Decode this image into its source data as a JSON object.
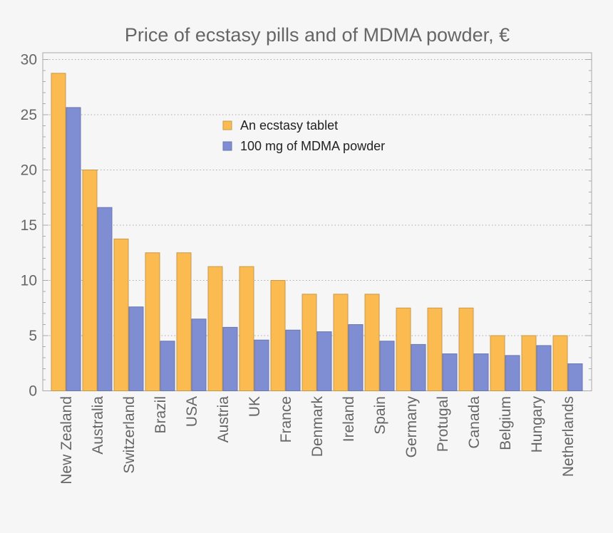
{
  "chart_data": {
    "type": "bar",
    "title": "Price of ecstasy pills and of MDMA powder, €",
    "xlabel": "",
    "ylabel": "",
    "ylim": [
      0,
      30.5
    ],
    "yticks": [
      0,
      5,
      10,
      15,
      20,
      25,
      30
    ],
    "grid": "horizontal dotted",
    "legend_position": "top-center",
    "categories": [
      "New Zealand",
      "Australia",
      "Switzerland",
      "Brazil",
      "USA",
      "Austria",
      "UK",
      "France",
      "Denmark",
      "Ireland",
      "Spain",
      "Germany",
      "Protugal",
      "Canada",
      "Belgium",
      "Hungary",
      "Netherlands"
    ],
    "series": [
      {
        "name": "An ecstasy tablet",
        "color": "#fbbb51",
        "values": [
          28.75,
          20,
          13.75,
          12.5,
          12.5,
          11.25,
          11.25,
          10,
          8.75,
          8.75,
          8.75,
          7.5,
          7.5,
          7.5,
          5,
          5,
          5
        ]
      },
      {
        "name": "100 mg of MDMA powder",
        "color": "#7f8dd3",
        "values": [
          25.65,
          16.6,
          7.6,
          4.5,
          6.5,
          5.75,
          4.6,
          5.5,
          5.35,
          6,
          4.5,
          4.2,
          3.35,
          3.35,
          3.2,
          4.1,
          2.45
        ]
      }
    ]
  }
}
